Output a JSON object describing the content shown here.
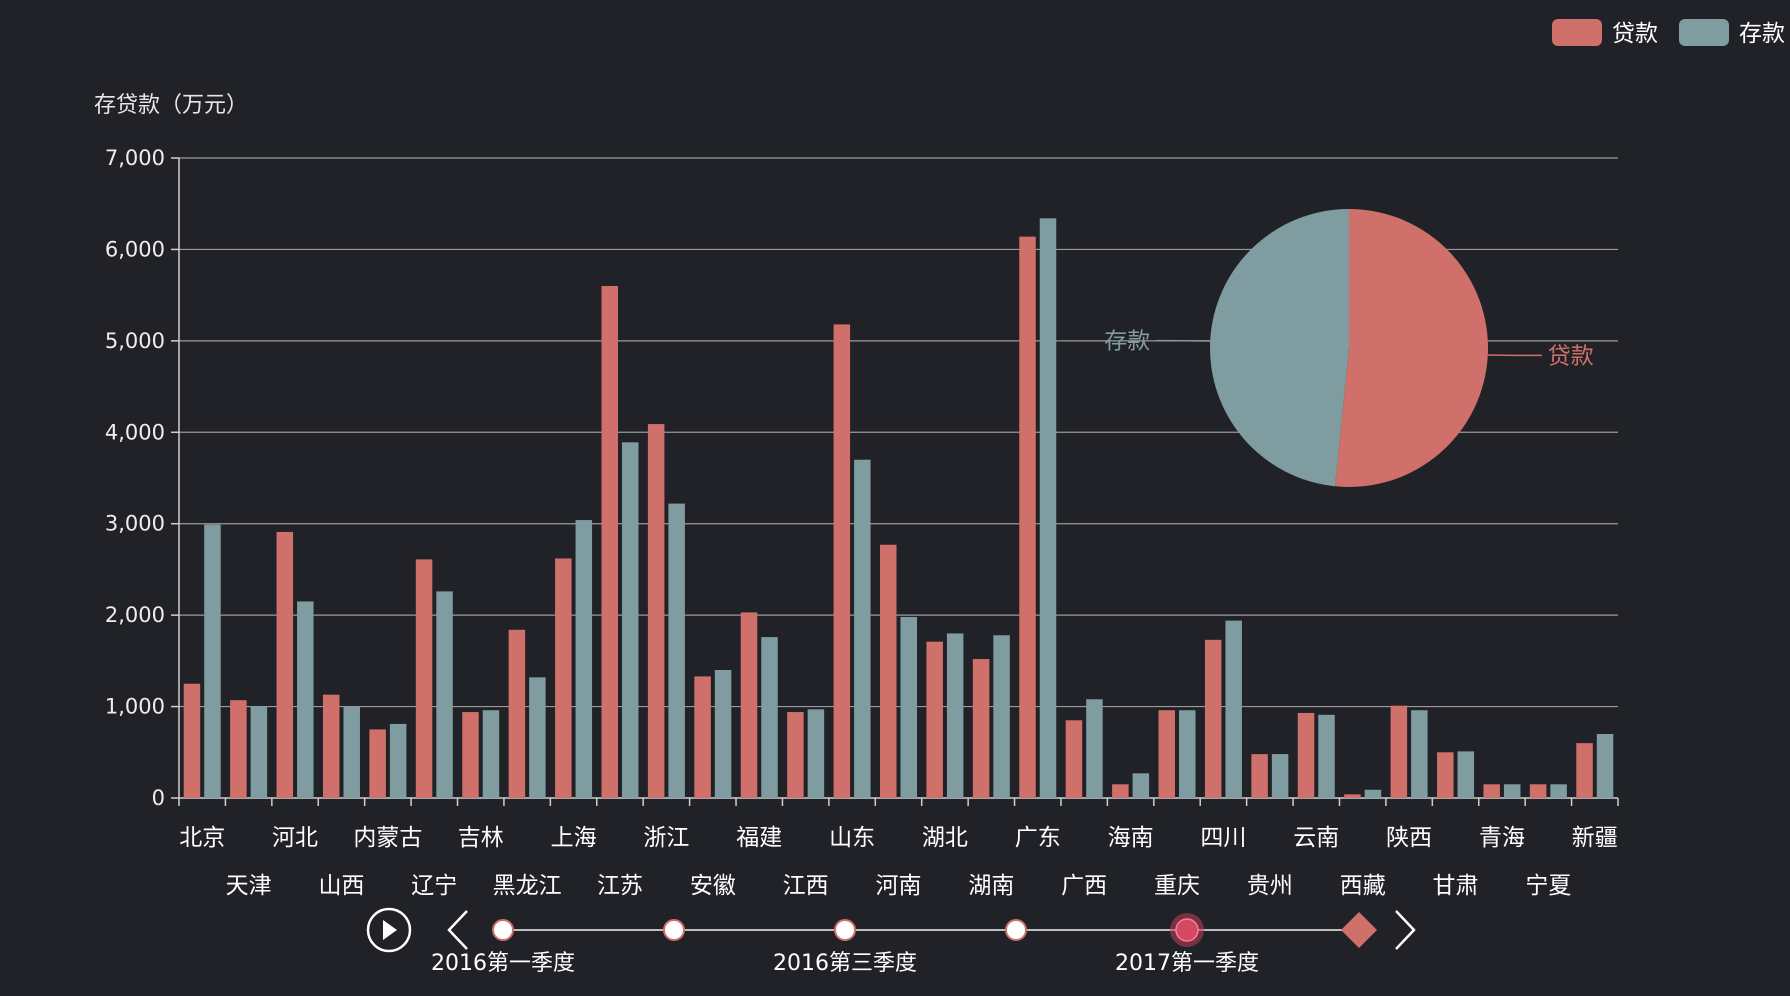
{
  "chart_data": [
    {
      "type": "bar",
      "ylabel": "存贷款（万元）",
      "ylim": [
        0,
        7000
      ],
      "yticks": [
        "0",
        "1,000",
        "2,000",
        "3,000",
        "4,000",
        "5,000",
        "6,000",
        "7,000"
      ],
      "grid": true,
      "legend_position": "top-right",
      "categories": [
        "北京",
        "天津",
        "河北",
        "山西",
        "内蒙古",
        "辽宁",
        "吉林",
        "黑龙江",
        "上海",
        "江苏",
        "浙江",
        "安徽",
        "福建",
        "江西",
        "山东",
        "河南",
        "湖北",
        "湖南",
        "广东",
        "广西",
        "海南",
        "重庆",
        "四川",
        "贵州",
        "云南",
        "西藏",
        "陕西",
        "甘肃",
        "青海",
        "宁夏",
        "新疆"
      ],
      "series": [
        {
          "name": "贷款",
          "color": "#d0706a",
          "values": [
            1250,
            1070,
            2910,
            1130,
            750,
            2610,
            940,
            1840,
            2620,
            5600,
            4090,
            1330,
            2030,
            940,
            5180,
            2770,
            1710,
            1520,
            6140,
            850,
            150,
            960,
            1730,
            480,
            930,
            40,
            1010,
            500,
            150,
            150,
            600
          ]
        },
        {
          "name": "存款",
          "color": "#7f9ca0",
          "values": [
            2990,
            1000,
            2150,
            1000,
            810,
            2260,
            960,
            1320,
            3040,
            3890,
            3220,
            1400,
            1760,
            970,
            3700,
            1980,
            1800,
            1780,
            6340,
            1080,
            270,
            960,
            1940,
            480,
            910,
            90,
            960,
            510,
            150,
            150,
            700
          ]
        }
      ]
    },
    {
      "type": "pie",
      "slices": [
        {
          "name": "贷款",
          "value": 51.6,
          "color": "#d0706a"
        },
        {
          "name": "存款",
          "value": 48.4,
          "color": "#7f9ca0"
        }
      ]
    }
  ],
  "timeline": {
    "labels": [
      "2016第一季度",
      "2016第三季度",
      "2017第一季度"
    ],
    "points": 6,
    "current_index": 4,
    "active_color": "#d0706a"
  }
}
